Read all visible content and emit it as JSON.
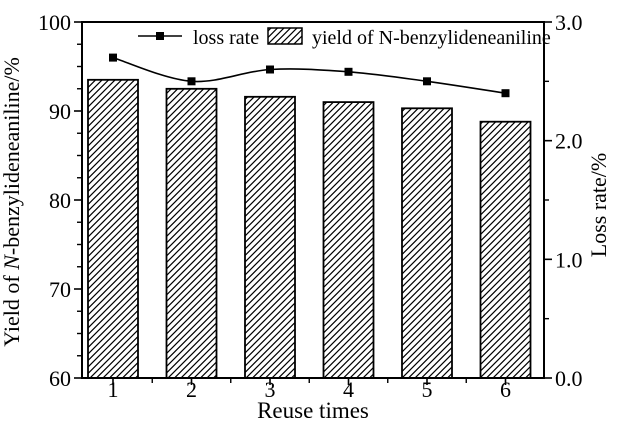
{
  "chart_data": {
    "type": "bar",
    "subtype": "combo-bar-line-dual-axis",
    "title": "",
    "categories": [
      "1",
      "2",
      "3",
      "4",
      "5",
      "6"
    ],
    "series": [
      {
        "name": "yield of N-benzylideneaniline",
        "type": "bar",
        "axis": "left",
        "style": "white-fill-black-diagonal-hatch",
        "values": [
          93.5,
          92.5,
          91.6,
          91.0,
          90.3,
          88.8
        ]
      },
      {
        "name": "loss rate",
        "type": "line",
        "axis": "right",
        "marker": "filled-black-square",
        "line_style": "smooth-black",
        "values": [
          2.7,
          2.5,
          2.6,
          2.58,
          2.5,
          2.4
        ]
      }
    ],
    "x_axis": {
      "label": "Reuse times",
      "tick_labels": [
        "1",
        "2",
        "3",
        "4",
        "5",
        "6"
      ]
    },
    "left_axis": {
      "label_prefix": "Yield of ",
      "label_italic": "N",
      "label_suffix": "-benzylideneaniline/%",
      "min": 60,
      "max": 100,
      "major_ticks": [
        60,
        70,
        80,
        90,
        100
      ],
      "minor_step": 2.5
    },
    "right_axis": {
      "label": "Loss rate/%",
      "min": 0.0,
      "max": 3.0,
      "major_ticks": [
        "0.0",
        "1.0",
        "2.0",
        "3.0"
      ],
      "minor_step": 0.5
    },
    "legend": {
      "position": "top-inside",
      "entries": [
        "loss rate",
        "yield of N-benzylideneaniline"
      ]
    },
    "grid": "off",
    "colors": {
      "foreground": "#000000",
      "background": "#ffffff"
    }
  }
}
